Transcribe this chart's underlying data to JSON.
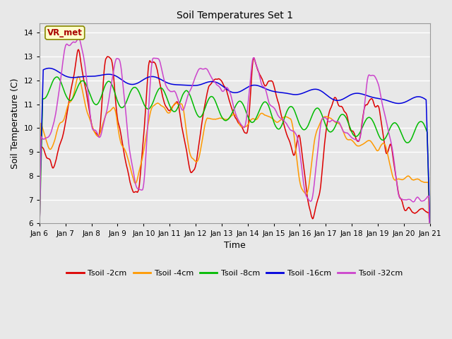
{
  "title": "Soil Temperatures Set 1",
  "xlabel": "Time",
  "ylabel": "Soil Temperature (C)",
  "ylim": [
    6.0,
    14.4
  ],
  "yticks": [
    6.0,
    7.0,
    8.0,
    9.0,
    10.0,
    11.0,
    12.0,
    13.0,
    14.0
  ],
  "bg_color": "#e8e8e8",
  "plot_bg_color": "#e8e8e8",
  "line_colors": {
    "2cm": "#dd0000",
    "4cm": "#ff9900",
    "8cm": "#00bb00",
    "16cm": "#0000dd",
    "32cm": "#cc44cc"
  },
  "legend_labels": [
    "Tsoil -2cm",
    "Tsoil -4cm",
    "Tsoil -8cm",
    "Tsoil -16cm",
    "Tsoil -32cm"
  ],
  "xtick_labels": [
    "Jan 6",
    "Jan 7",
    "Jan 8",
    "Jan 9",
    "Jan 10",
    "Jan 11",
    "Jan 12",
    "Jan 13",
    "Jan 14",
    "Jan 15",
    "Jan 16",
    "Jan 17",
    "Jan 18",
    "Jan 19",
    "Jan 20",
    "Jan 21"
  ],
  "annotation_text": "VR_met",
  "annotation_color": "#aa0000"
}
